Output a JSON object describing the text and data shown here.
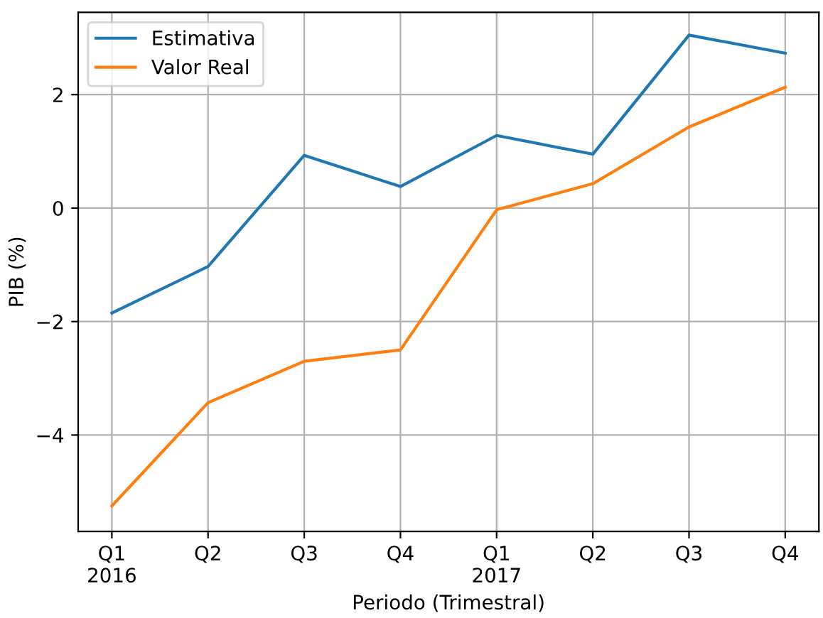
{
  "chart_data": {
    "type": "line",
    "xlabel": "Periodo (Trimestral)",
    "ylabel": "PIB (%)",
    "categories": [
      "Q1\n2016",
      "Q2",
      "Q3",
      "Q4",
      "Q1\n2017",
      "Q2",
      "Q3",
      "Q4"
    ],
    "series": [
      {
        "name": "Estimativa",
        "color": "#1f77b4",
        "values": [
          -1.85,
          -1.03,
          0.93,
          0.38,
          1.28,
          0.95,
          3.05,
          2.73
        ]
      },
      {
        "name": "Valor Real",
        "color": "#ff7f0e",
        "values": [
          -5.25,
          -3.43,
          -2.7,
          -2.5,
          -0.03,
          0.43,
          1.43,
          2.13
        ]
      }
    ],
    "ylim": [
      -5.7,
      3.45
    ],
    "yticks": [
      {
        "value": -4,
        "label": "−4"
      },
      {
        "value": -2,
        "label": "−2"
      },
      0,
      2
    ],
    "grid": true,
    "legend": "top left",
    "marker": "none",
    "line_style": "solid"
  }
}
